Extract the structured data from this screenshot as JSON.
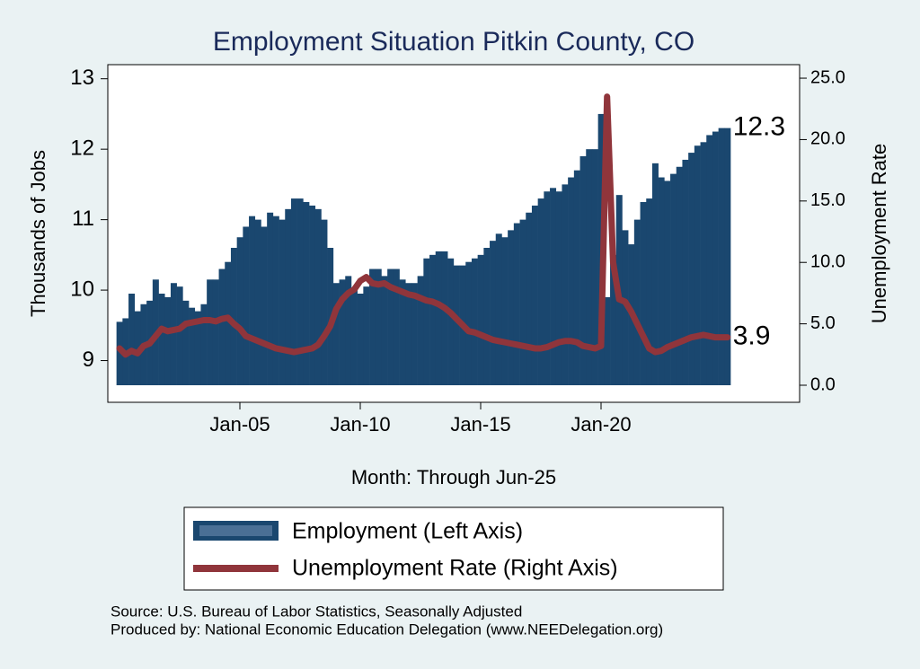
{
  "chart_data": {
    "type": "combo",
    "title": "Employment Situation Pitkin  County, CO",
    "x_label": "Month: Through Jun-25",
    "y_label": "Thousands of Jobs",
    "y2_label": "Unemployment Rate",
    "categories": [
      null,
      null,
      null,
      null,
      null,
      null,
      null,
      null,
      null,
      null,
      null,
      null,
      null,
      null,
      null,
      null,
      null,
      null,
      null,
      null,
      "Jan-05",
      null,
      null,
      null,
      null,
      null,
      null,
      null,
      null,
      null,
      null,
      null,
      null,
      null,
      null,
      null,
      null,
      null,
      null,
      null,
      "Jan-10",
      null,
      null,
      null,
      null,
      null,
      null,
      null,
      null,
      null,
      null,
      null,
      null,
      null,
      null,
      null,
      null,
      null,
      null,
      null,
      "Jan-15",
      null,
      null,
      null,
      null,
      null,
      null,
      null,
      null,
      null,
      null,
      null,
      null,
      null,
      null,
      null,
      null,
      null,
      null,
      null,
      "Jan-20",
      null,
      null,
      null,
      null,
      null,
      null,
      null,
      null,
      null,
      null,
      null,
      null,
      null,
      null,
      null,
      null,
      null,
      null,
      null,
      null,
      null
    ],
    "series": [
      {
        "name": "Employment (Left Axis)",
        "type": "bar",
        "color": "#1a476f",
        "axis": "y",
        "values": [
          9.55,
          9.6,
          9.95,
          9.7,
          9.8,
          9.85,
          10.15,
          9.95,
          9.9,
          10.1,
          10.05,
          9.85,
          9.75,
          9.7,
          9.8,
          10.15,
          10.15,
          10.3,
          10.4,
          10.6,
          10.75,
          10.9,
          11.05,
          11.0,
          10.9,
          11.1,
          11.05,
          11.0,
          11.15,
          11.3,
          11.3,
          11.25,
          11.2,
          11.15,
          11.0,
          10.6,
          10.1,
          10.15,
          10.2,
          10.0,
          9.95,
          10.05,
          10.3,
          10.3,
          10.2,
          10.3,
          10.3,
          10.15,
          10.1,
          10.1,
          10.2,
          10.45,
          10.5,
          10.55,
          10.55,
          10.45,
          10.35,
          10.35,
          10.4,
          10.45,
          10.5,
          10.6,
          10.7,
          10.8,
          10.75,
          10.85,
          10.95,
          11.0,
          11.1,
          11.2,
          11.3,
          11.4,
          11.45,
          11.4,
          11.5,
          11.6,
          11.7,
          11.9,
          12.0,
          12.0,
          12.5,
          9.9,
          10.5,
          11.35,
          10.85,
          10.65,
          11.0,
          11.25,
          11.3,
          11.8,
          11.6,
          11.55,
          11.65,
          11.75,
          11.85,
          11.95,
          12.05,
          12.1,
          12.2,
          12.25,
          12.3,
          12.3
        ]
      },
      {
        "name": "Unemployment Rate (Right Axis)",
        "type": "line",
        "color": "#90353b",
        "axis": "y2",
        "values": [
          3.0,
          2.5,
          2.8,
          2.6,
          3.2,
          3.4,
          4.0,
          4.6,
          4.4,
          4.5,
          4.6,
          5.0,
          5.1,
          5.2,
          5.3,
          5.3,
          5.2,
          5.4,
          5.5,
          5.0,
          4.6,
          4.0,
          3.8,
          3.6,
          3.4,
          3.2,
          3.0,
          2.9,
          2.8,
          2.7,
          2.8,
          2.9,
          3.0,
          3.3,
          4.0,
          4.8,
          6.2,
          7.0,
          7.5,
          7.8,
          8.5,
          8.8,
          8.3,
          8.2,
          8.3,
          8.0,
          7.8,
          7.6,
          7.4,
          7.3,
          7.1,
          6.9,
          6.8,
          6.6,
          6.3,
          5.9,
          5.4,
          4.9,
          4.4,
          4.3,
          4.1,
          3.9,
          3.7,
          3.6,
          3.5,
          3.4,
          3.3,
          3.2,
          3.1,
          3.0,
          3.0,
          3.1,
          3.3,
          3.5,
          3.6,
          3.6,
          3.5,
          3.2,
          3.1,
          3.0,
          3.2,
          23.5,
          10.0,
          7.0,
          6.8,
          6.0,
          5.0,
          4.0,
          3.0,
          2.7,
          2.8,
          3.1,
          3.3,
          3.5,
          3.7,
          3.9,
          4.0,
          4.1,
          4.0,
          3.9,
          3.9,
          3.9
        ]
      }
    ],
    "ylim": [
      8.65,
      13.2
    ],
    "yticks": [
      9,
      10,
      11,
      12,
      13
    ],
    "y2lim": [
      0,
      26.1
    ],
    "y2ticks": [
      {
        "value": 0,
        "label": "0.0"
      },
      {
        "value": 5,
        "label": "5.0"
      },
      {
        "value": 10,
        "label": "10.0"
      },
      {
        "value": 15,
        "label": "15.0"
      },
      {
        "value": 20,
        "label": "20.0"
      },
      {
        "value": 25,
        "label": "25.0"
      }
    ],
    "notes": [
      "Source: U.S. Bureau of Labor Statistics, Seasonally Adjusted",
      "Produced by: National Economic Education Delegation (www.NEEDelegation.org)"
    ]
  }
}
